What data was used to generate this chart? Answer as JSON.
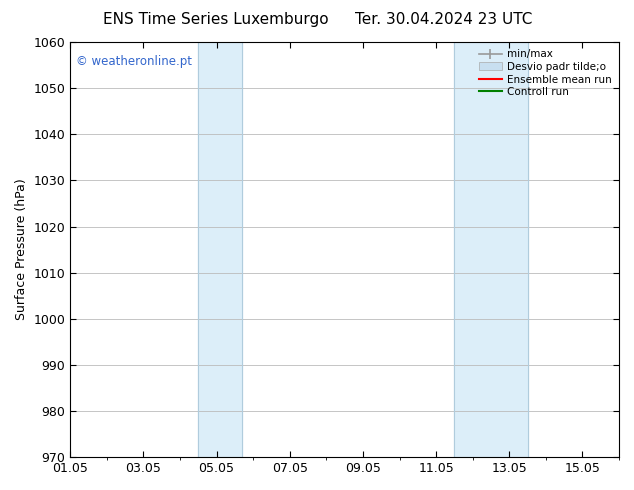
{
  "title_left": "ENS Time Series Luxemburgo",
  "title_right": "Ter. 30.04.2024 23 UTC",
  "ylabel": "Surface Pressure (hPa)",
  "ylim": [
    970,
    1060
  ],
  "yticks": [
    970,
    980,
    990,
    1000,
    1010,
    1020,
    1030,
    1040,
    1050,
    1060
  ],
  "xtick_labels": [
    "01.05",
    "03.05",
    "05.05",
    "07.05",
    "09.05",
    "11.05",
    "13.05",
    "15.05"
  ],
  "xtick_day_offsets": [
    0,
    2,
    4,
    6,
    8,
    10,
    12,
    14
  ],
  "shaded_bands": [
    {
      "xmin_days": 3.5,
      "xmax_days": 4.7,
      "color": "#dceef9"
    },
    {
      "xmin_days": 10.5,
      "xmax_days": 12.5,
      "color": "#dceef9"
    }
  ],
  "watermark_text": "© weatheronline.pt",
  "watermark_color": "#3366cc",
  "bg_color": "#ffffff",
  "grid_color": "#bbbbbb",
  "title_fontsize": 11,
  "label_fontsize": 9,
  "tick_fontsize": 9,
  "legend_label_minmax": "min/max",
  "legend_label_desvio": "Desvio padr tilde;o",
  "legend_label_ensemble": "Ensemble mean run",
  "legend_label_controll": "Controll run",
  "legend_color_minmax": "#999999",
  "legend_color_desvio": "#c8dff0",
  "legend_color_ensemble": "red",
  "legend_color_controll": "green"
}
